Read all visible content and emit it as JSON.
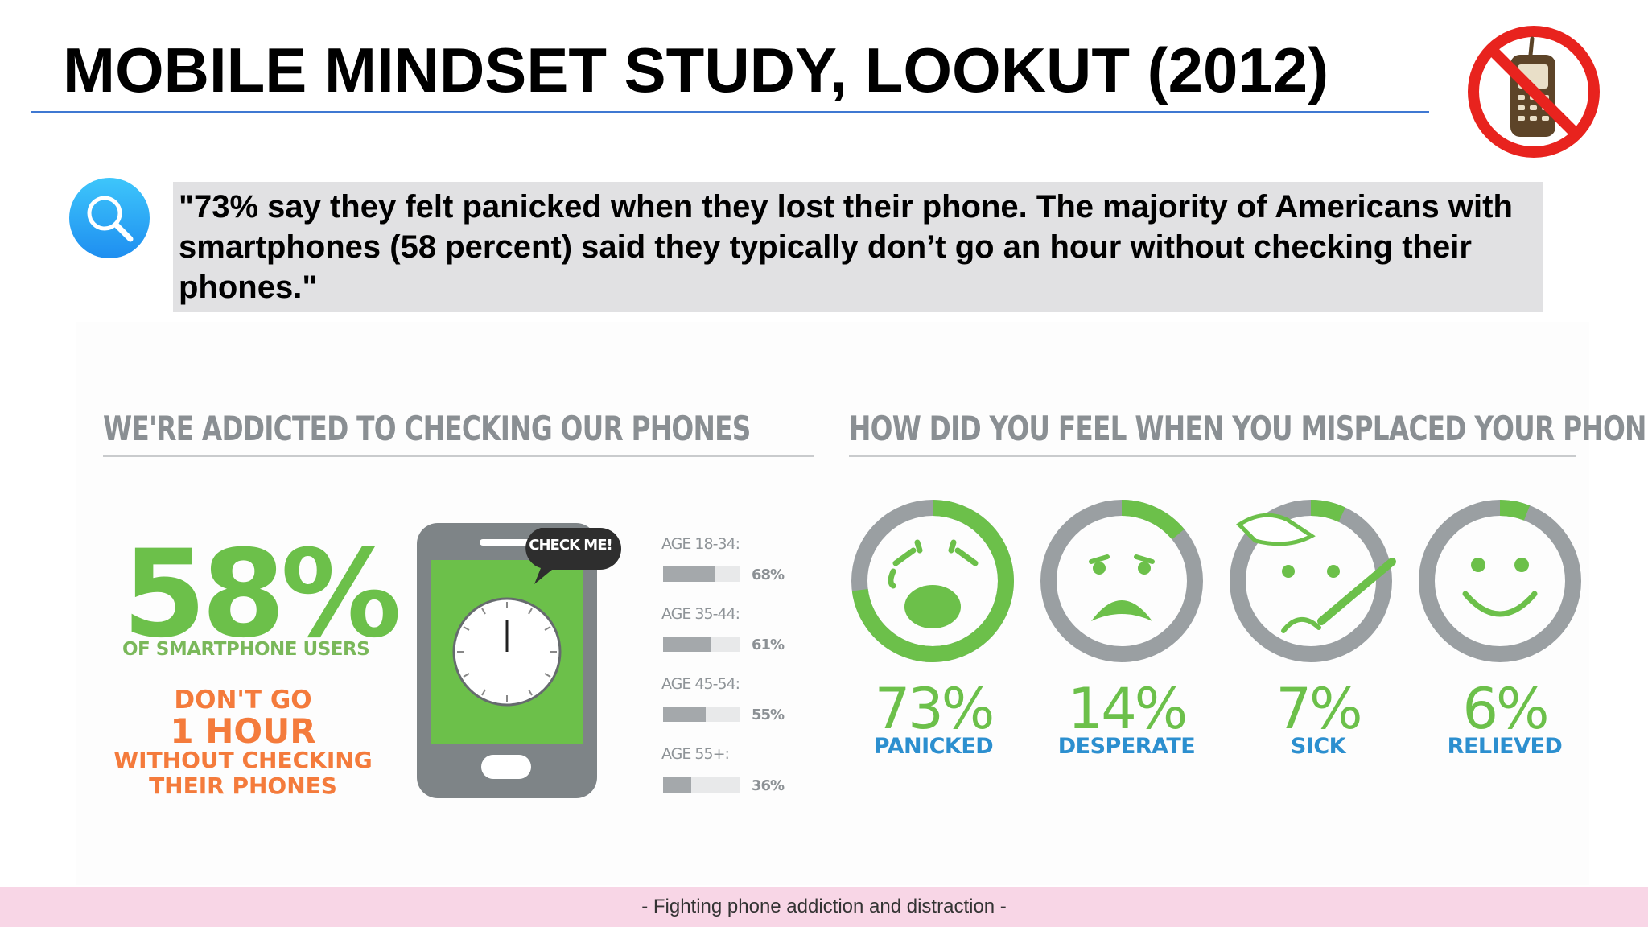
{
  "title": "MOBILE MINDSET STUDY, LOOKUT (2012)",
  "quote": "\"73% say they felt panicked when they lost their phone. The majority of Americans with smartphones (58 percent) said they typically don’t go an hour without checking their phones.\"",
  "left_section": {
    "heading": "WE'RE ADDICTED TO CHECKING OUR PHONES",
    "big_percent": "58%",
    "users_line": "OF SMARTPHONE USERS",
    "dont_go": "DON'T GO",
    "one_hour": "1 HOUR",
    "without_line1": "WITHOUT CHECKING",
    "without_line2": "THEIR PHONES",
    "bubble": "CHECK ME!"
  },
  "chart_data": [
    {
      "type": "bar",
      "categories": [
        "AGE 18-34:",
        "AGE 35-44:",
        "AGE 45-54:",
        "AGE 55+:"
      ],
      "values": [
        68,
        61,
        55,
        36
      ],
      "value_labels": [
        "68%",
        "61%",
        "55%",
        "36%"
      ],
      "ylim": [
        0,
        100
      ]
    },
    {
      "type": "pie",
      "title": "HOW DID YOU FEEL WHEN YOU MISPLACED YOUR PHONE?",
      "categories": [
        "PANICKED",
        "DESPERATE",
        "SICK",
        "RELIEVED"
      ],
      "values": [
        73,
        14,
        7,
        6
      ],
      "value_labels": [
        "73%",
        "14%",
        "7%",
        "6%"
      ]
    }
  ],
  "colors": {
    "green": "#6cc04a",
    "gray_ring": "#9a9fa2",
    "blue_label": "#2c8fcf",
    "orange": "#f47b3c",
    "title_rule": "#3f78d2",
    "footer_band": "#f8d6e6"
  },
  "icons": {
    "search": "search-icon",
    "no_phone": "no-phone-icon"
  },
  "footer": "- Fighting phone addiction and distraction -"
}
